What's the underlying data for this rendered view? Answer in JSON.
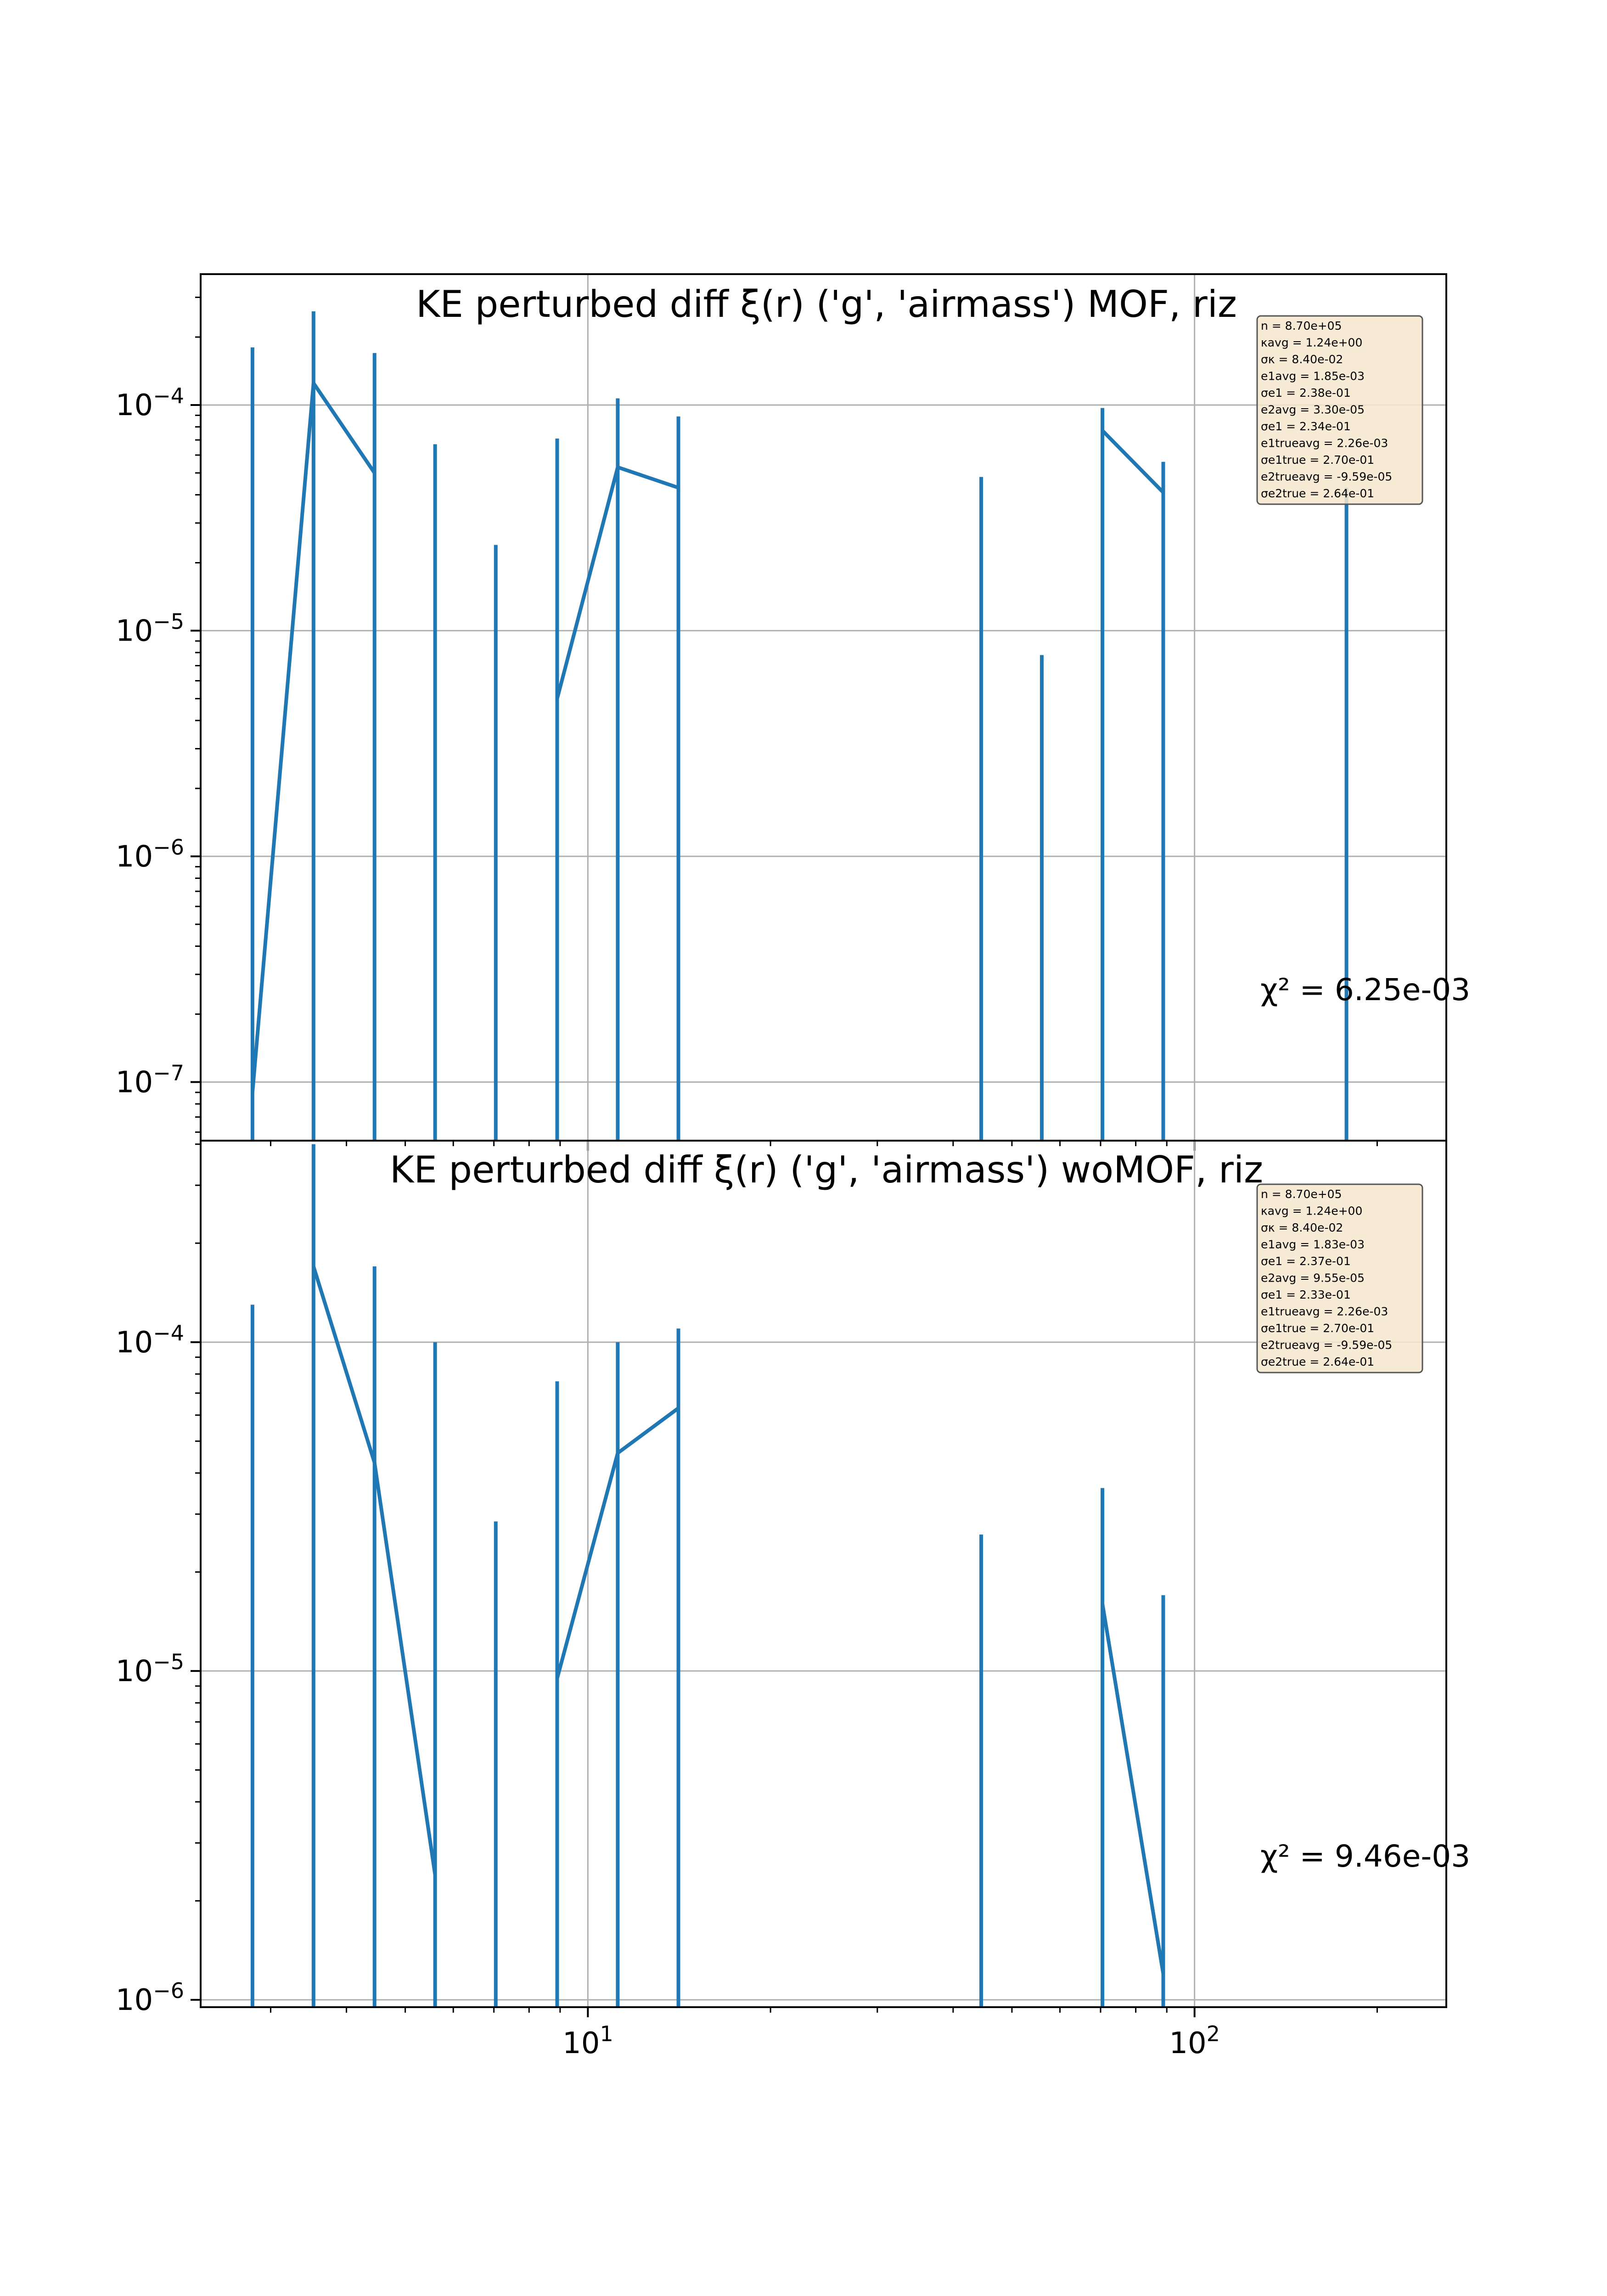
{
  "chart_data": [
    {
      "type": "line",
      "title": "KE perturbed diff ξ(r) ('g', 'airmass') MOF,  riz",
      "xscale": "log",
      "yscale": "log",
      "xlim": [
        2.3,
        260
      ],
      "ylim": [
        5.5e-08,
        0.00038
      ],
      "grid": true,
      "yticks": [
        {
          "value": 1e-07,
          "label": "10^-7"
        },
        {
          "value": 1e-06,
          "label": "10^-6"
        },
        {
          "value": 1e-05,
          "label": "10^-5"
        },
        {
          "value": 0.0001,
          "label": "10^-4"
        }
      ],
      "annotation": "χ² = 6.25e-03",
      "stats_box": [
        "n = 8.70e+05",
        "κavg = 1.24e+00",
        "σκ = 8.40e-02",
        "e1avg = 1.85e-03",
        "σe1 = 2.38e-01",
        "e2avg = 3.30e-05",
        "σe1 = 2.34e-01",
        "e1trueavg = 2.26e-03",
        "σe1true = 2.70e-01",
        "e2trueavg = -9.59e-05",
        "σe2true = 2.64e-01"
      ],
      "series": [
        {
          "x": [
            2.8,
            3.53,
            4.45,
            5.6,
            7.05,
            8.9,
            11.2,
            14.1,
            44.5,
            56.0,
            70.5,
            88.8,
            178.0
          ],
          "y": [
            9e-08,
            0.000125,
            5e-05,
            null,
            null,
            5e-06,
            5.3e-05,
            4.3e-05,
            null,
            null,
            7.7e-05,
            4.1e-05,
            null
          ],
          "yerr_upper": [
            0.00018,
            0.00026,
            0.00017,
            6.7e-05,
            2.4e-05,
            7.1e-05,
            0.000107,
            8.9e-05,
            4.8e-05,
            7.8e-06,
            9.7e-05,
            5.6e-05,
            4.3e-05
          ]
        }
      ]
    },
    {
      "type": "line",
      "title": "KE perturbed diff ξ(r) ('g', 'airmass') woMOF,  riz",
      "xscale": "log",
      "yscale": "log",
      "xlim": [
        2.3,
        260
      ],
      "ylim": [
        9.5e-07,
        0.00041
      ],
      "grid": true,
      "xticks": [
        {
          "value": 10,
          "label": "10^1"
        },
        {
          "value": 100,
          "label": "10^2"
        }
      ],
      "yticks": [
        {
          "value": 1e-06,
          "label": "10^-6"
        },
        {
          "value": 1e-05,
          "label": "10^-5"
        },
        {
          "value": 0.0001,
          "label": "10^-4"
        }
      ],
      "annotation": "χ² = 9.46e-03",
      "stats_box": [
        "n = 8.70e+05",
        "κavg = 1.24e+00",
        "σκ = 8.40e-02",
        "e1avg = 1.83e-03",
        "σe1 = 2.37e-01",
        "e2avg = 9.55e-05",
        "σe1 = 2.33e-01",
        "e1trueavg = 2.26e-03",
        "σe1true = 2.70e-01",
        "e2trueavg = -9.59e-05",
        "σe2true = 2.64e-01"
      ],
      "series": [
        {
          "x": [
            2.8,
            3.53,
            4.45,
            5.6,
            7.05,
            8.9,
            11.2,
            14.1,
            44.5,
            70.5,
            88.8
          ],
          "y": [
            null,
            0.00017,
            4.3e-05,
            2.4e-06,
            null,
            9.5e-06,
            4.6e-05,
            6.3e-05,
            null,
            1.6e-05,
            1.2e-06
          ],
          "yerr_upper": [
            0.00013,
            0.0004,
            0.00017,
            0.0001,
            2.85e-05,
            7.6e-05,
            0.0001,
            0.00011,
            2.6e-05,
            3.6e-05,
            1.7e-05
          ]
        }
      ]
    }
  ]
}
